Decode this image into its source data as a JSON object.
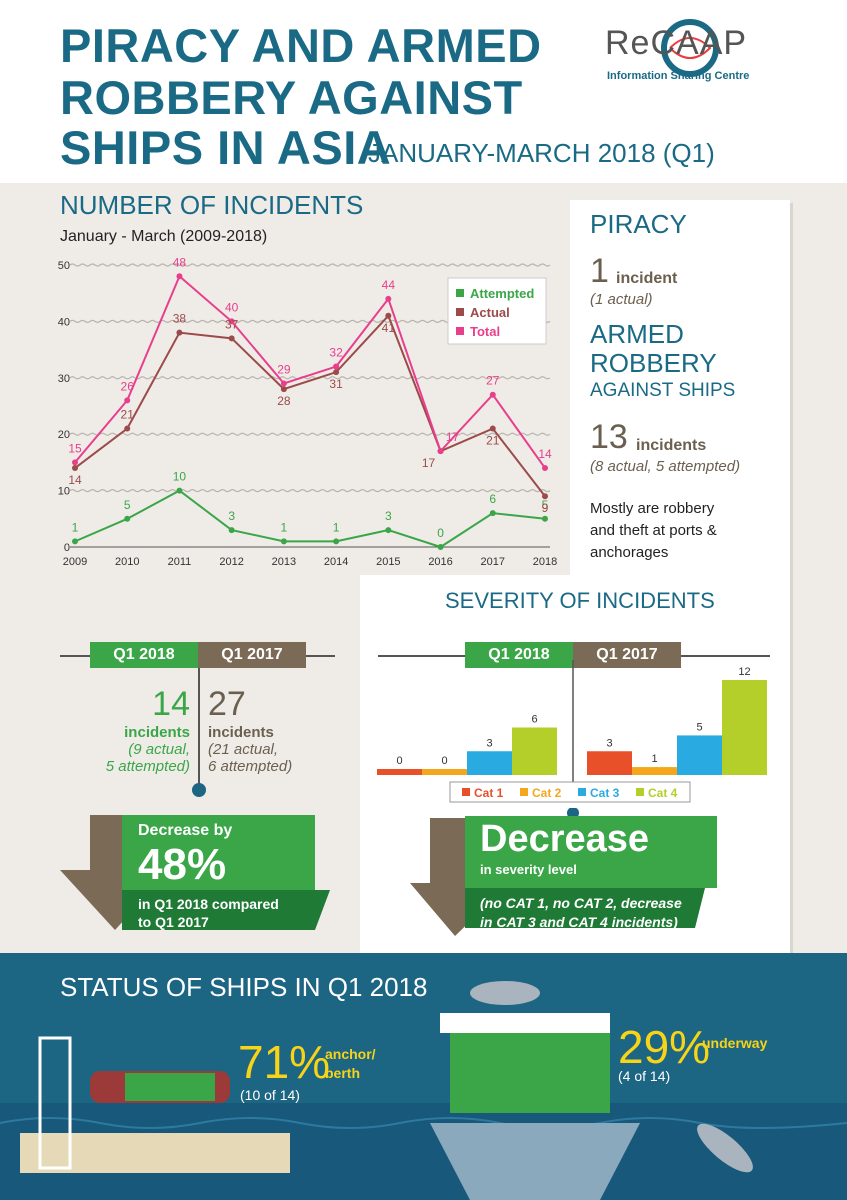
{
  "header": {
    "title_line1": "PIRACY AND ARMED",
    "title_line2": "ROBBERY AGAINST",
    "title_line3": "SHIPS IN ASIA",
    "title_sub": "JANUARY-MARCH 2018 (Q1)",
    "logo_text": "ReCAAP",
    "logo_sub": "Information Sharing Centre"
  },
  "incidents_section": {
    "title": "NUMBER OF INCIDENTS",
    "subtitle": "January - March (2009-2018)"
  },
  "chart_data": {
    "type": "line",
    "x": [
      "2009",
      "2010",
      "2011",
      "2012",
      "2013",
      "2014",
      "2015",
      "2016",
      "2017",
      "2018"
    ],
    "ylim": [
      0,
      50
    ],
    "yticks": [
      0,
      10,
      20,
      30,
      40,
      50
    ],
    "series": [
      {
        "name": "Attempted",
        "color": "#3aa648",
        "values": [
          1,
          5,
          10,
          3,
          1,
          1,
          3,
          0,
          6,
          5
        ]
      },
      {
        "name": "Actual",
        "color": "#9c4a4a",
        "values": [
          14,
          21,
          38,
          37,
          28,
          31,
          41,
          17,
          21,
          9
        ]
      },
      {
        "name": "Total",
        "color": "#e83e8c",
        "values": [
          15,
          26,
          48,
          40,
          29,
          32,
          44,
          17,
          27,
          14
        ]
      }
    ],
    "legend": "top-right"
  },
  "piracy_panel": {
    "piracy_title": "PIRACY",
    "piracy_count": "1",
    "piracy_unit": "incident",
    "piracy_detail": "(1 actual)",
    "armed_line1": "ARMED",
    "armed_line2": "ROBBERY",
    "armed_line3": "AGAINST SHIPS",
    "armed_count": "13",
    "armed_unit": "incidents",
    "armed_detail": "(8 actual, 5 attempted)",
    "note_line1": "Mostly are robbery",
    "note_line2": "and theft at ports &",
    "note_line3": "anchorages"
  },
  "comparison": {
    "q1_2018_label": "Q1 2018",
    "q1_2017_label": "Q1 2017",
    "count_2018": "14",
    "unit_2018": "incidents",
    "detail_2018_a": "(9 actual,",
    "detail_2018_b": "5 attempted)",
    "count_2017": "27",
    "unit_2017": "incidents",
    "detail_2017_a": "(21 actual,",
    "detail_2017_b": "6 attempted)",
    "decrease_label": "Decrease by",
    "decrease_pct": "48%",
    "decrease_note_a": "in Q1 2018 compared",
    "decrease_note_b": "to Q1 2017"
  },
  "severity": {
    "title": "SEVERITY OF INCIDENTS",
    "q1_2018_label": "Q1 2018",
    "q1_2017_label": "Q1 2017",
    "categories": [
      "Cat 1",
      "Cat 2",
      "Cat 3",
      "Cat 4"
    ],
    "colors": [
      "#e8502a",
      "#f4a71c",
      "#29abe2",
      "#b5cf2a"
    ],
    "values_2018": [
      0,
      0,
      3,
      6
    ],
    "values_2017": [
      3,
      1,
      5,
      12
    ],
    "decrease_title": "Decrease",
    "decrease_sub": "in severity level",
    "decrease_note_a": "(no CAT 1, no CAT 2, decrease",
    "decrease_note_b": "in CAT 3 and CAT 4 incidents)"
  },
  "status": {
    "title": "STATUS OF SHIPS IN Q1 2018",
    "anchor_pct": "71%",
    "anchor_label_a": "anchor/",
    "anchor_label_b": "berth",
    "anchor_detail": "(10 of 14)",
    "underway_pct": "29%",
    "underway_label": "underway",
    "underway_detail": "(4 of 14)"
  }
}
